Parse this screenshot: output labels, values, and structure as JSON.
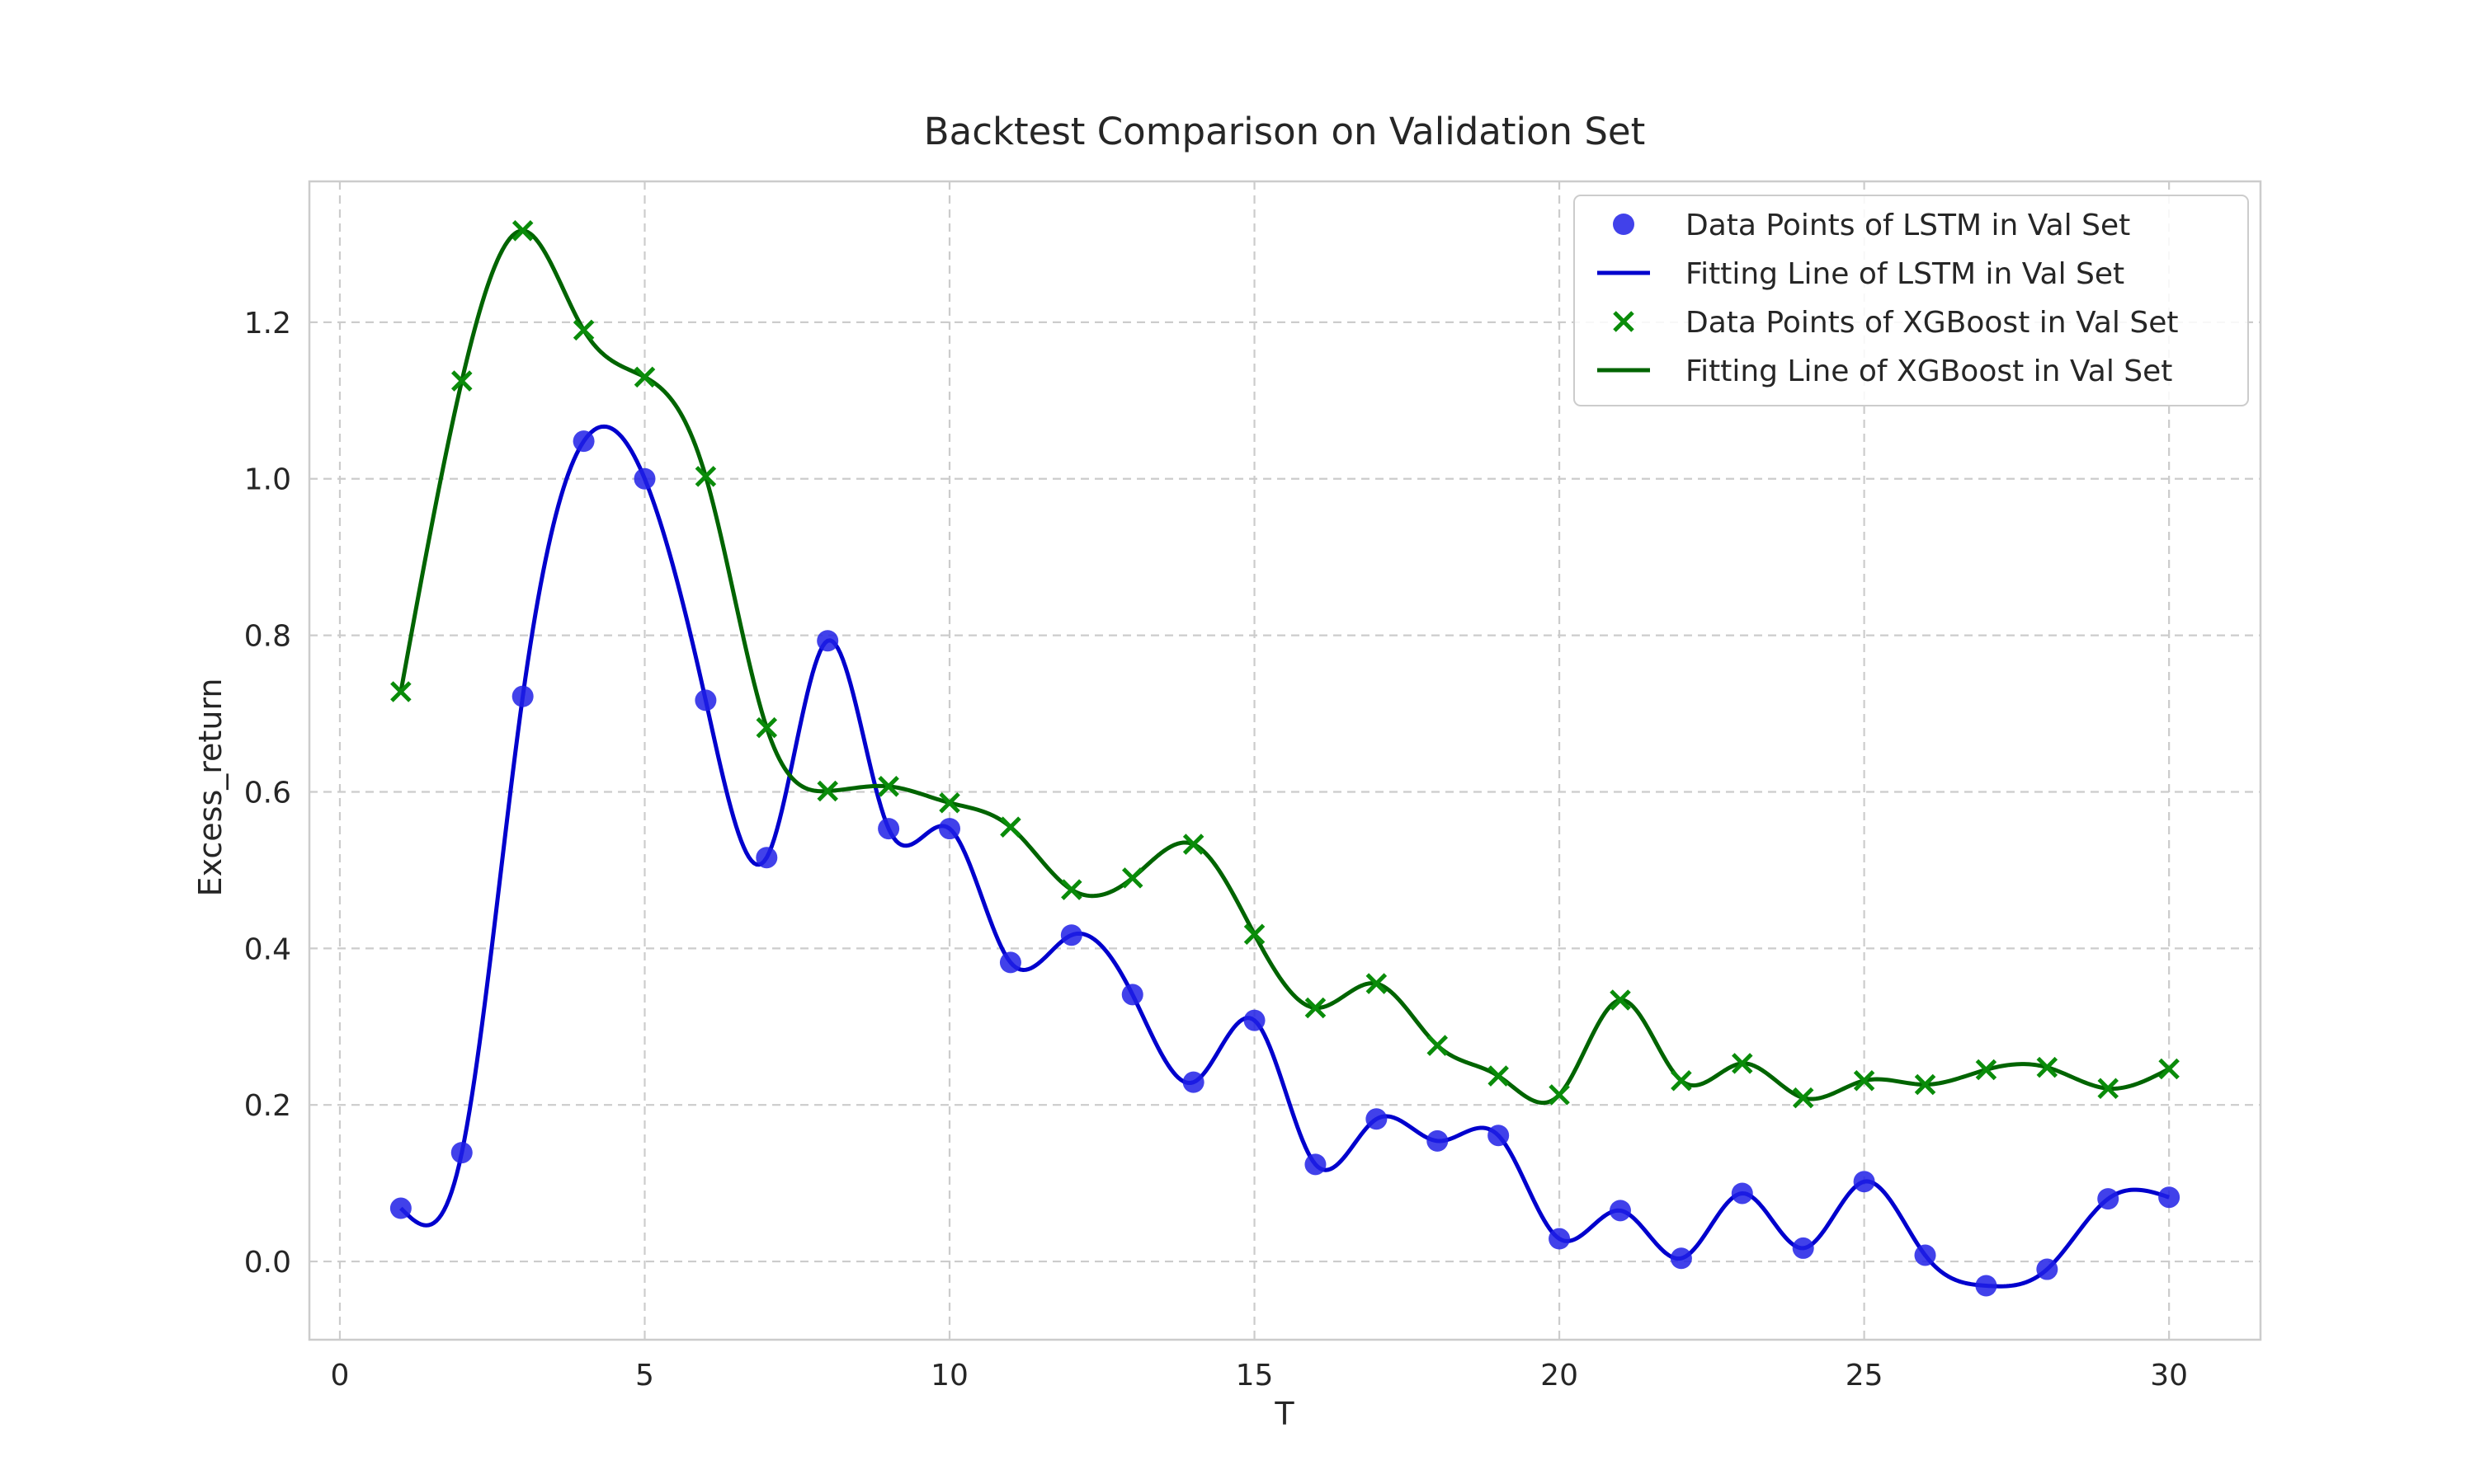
{
  "chart_data": {
    "type": "line",
    "title": "Backtest Comparison on Validation Set",
    "xlabel": "T",
    "ylabel": "Excess_return",
    "xlim": [
      -0.5,
      31.5
    ],
    "ylim": [
      -0.1,
      1.38
    ],
    "xticks": [
      0,
      5,
      10,
      15,
      20,
      25,
      30
    ],
    "xtick_labels": [
      "0",
      "5",
      "10",
      "15",
      "20",
      "25",
      "30"
    ],
    "yticks": [
      0.0,
      0.2,
      0.4,
      0.6,
      0.8,
      1.0,
      1.2
    ],
    "ytick_labels": [
      "0.0",
      "0.2",
      "0.4",
      "0.6",
      "0.8",
      "1.0",
      "1.2"
    ],
    "grid": true,
    "legend_position": "top-right",
    "x": [
      1,
      2,
      3,
      4,
      5,
      6,
      7,
      8,
      9,
      10,
      11,
      12,
      13,
      14,
      15,
      16,
      17,
      18,
      19,
      20,
      21,
      22,
      23,
      24,
      25,
      26,
      27,
      28,
      29,
      30
    ],
    "series": [
      {
        "name": "Data Points of LSTM in Val Set",
        "kind": "scatter",
        "marker": "circle",
        "color": "#2020e6",
        "values": [
          0.068,
          0.139,
          0.722,
          1.048,
          1.0,
          0.717,
          0.516,
          0.793,
          0.553,
          0.553,
          0.382,
          0.417,
          0.341,
          0.229,
          0.308,
          0.124,
          0.182,
          0.154,
          0.161,
          0.029,
          0.065,
          0.004,
          0.087,
          0.017,
          0.102,
          0.008,
          -0.031,
          -0.01,
          0.08,
          0.082
        ]
      },
      {
        "name": "Fitting Line of LSTM in Val Set",
        "kind": "line",
        "color": "#0000cd",
        "values": [
          0.068,
          0.139,
          0.722,
          1.048,
          1.0,
          0.717,
          0.516,
          0.793,
          0.553,
          0.553,
          0.382,
          0.417,
          0.341,
          0.229,
          0.308,
          0.124,
          0.182,
          0.154,
          0.161,
          0.029,
          0.065,
          0.004,
          0.087,
          0.017,
          0.102,
          0.008,
          -0.031,
          -0.01,
          0.08,
          0.082
        ]
      },
      {
        "name": "Data Points of XGBoost in Val Set",
        "kind": "scatter",
        "marker": "x",
        "color": "#0a8c0a",
        "values": [
          0.728,
          1.125,
          1.317,
          1.19,
          1.13,
          1.003,
          0.682,
          0.601,
          0.607,
          0.586,
          0.555,
          0.475,
          0.49,
          0.533,
          0.418,
          0.324,
          0.355,
          0.276,
          0.237,
          0.213,
          0.334,
          0.231,
          0.253,
          0.209,
          0.231,
          0.226,
          0.245,
          0.248,
          0.221,
          0.246
        ]
      },
      {
        "name": "Fitting Line of XGBoost in Val Set",
        "kind": "line",
        "color": "#006400",
        "values": [
          0.728,
          1.125,
          1.317,
          1.19,
          1.13,
          1.003,
          0.682,
          0.601,
          0.607,
          0.586,
          0.555,
          0.475,
          0.49,
          0.533,
          0.418,
          0.324,
          0.355,
          0.276,
          0.237,
          0.213,
          0.334,
          0.231,
          0.253,
          0.209,
          0.231,
          0.226,
          0.245,
          0.248,
          0.221,
          0.246
        ]
      }
    ]
  }
}
